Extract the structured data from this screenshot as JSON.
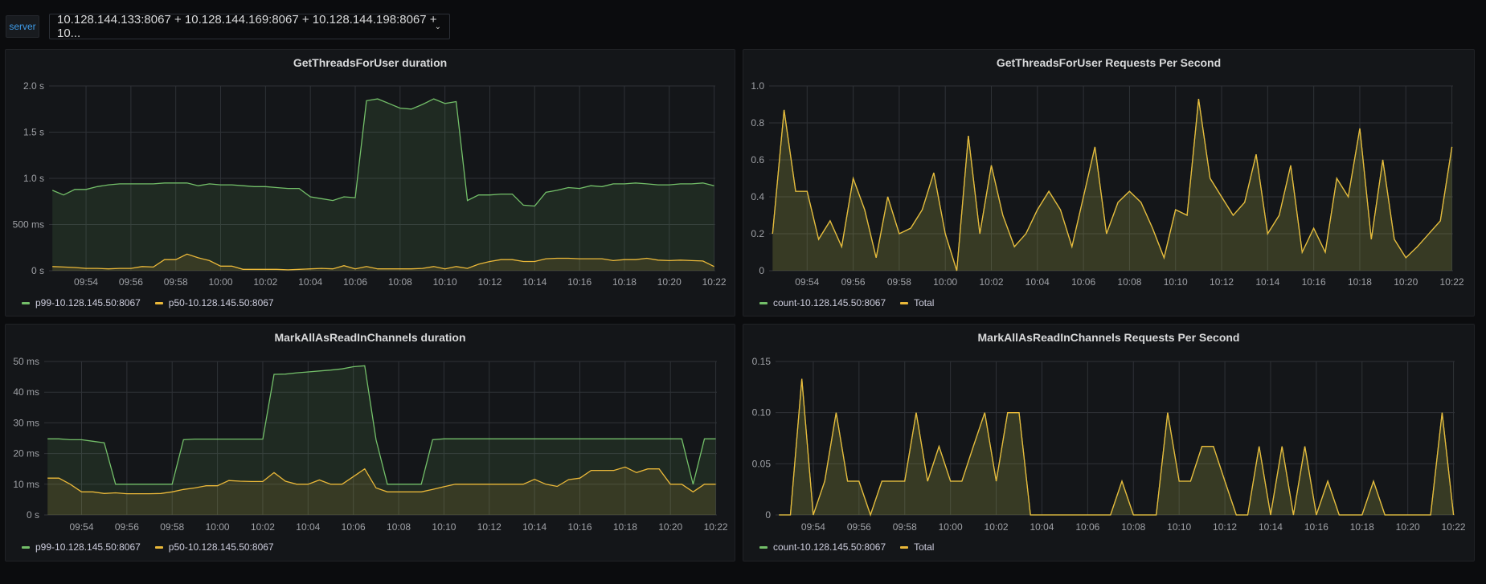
{
  "variable": {
    "label": "server",
    "value": "10.128.144.133:8067 + 10.128.144.169:8067 + 10.128.144.198:8067 + 10...",
    "chevron_icon": "chevron-down-icon"
  },
  "colors": {
    "green": "#73bf69",
    "yellow": "#eab839",
    "accent": "#3d9ae6"
  },
  "chart_data": [
    {
      "type": "area",
      "title": "GetThreadsForUser duration",
      "x_start": "09:52:30",
      "interval_seconds": 30,
      "x_ticks": [
        "09:54",
        "09:56",
        "09:58",
        "10:00",
        "10:02",
        "10:04",
        "10:06",
        "10:08",
        "10:10",
        "10:12",
        "10:14",
        "10:16",
        "10:18",
        "10:20",
        "10:22"
      ],
      "y_ticks": [
        {
          "v": 0,
          "label": "0 s"
        },
        {
          "v": 0.5,
          "label": "500 ms"
        },
        {
          "v": 1.0,
          "label": "1.0 s"
        },
        {
          "v": 1.5,
          "label": "1.5 s"
        },
        {
          "v": 2.0,
          "label": "2.0 s"
        }
      ],
      "ylim": [
        0,
        2.0
      ],
      "yunit": "s",
      "series": [
        {
          "name": "p99-10.128.145.50:8067",
          "color": "#73bf69",
          "values": [
            0.87,
            0.82,
            0.88,
            0.88,
            0.91,
            0.93,
            0.94,
            0.94,
            0.94,
            0.94,
            0.95,
            0.95,
            0.95,
            0.92,
            0.94,
            0.93,
            0.93,
            0.92,
            0.91,
            0.91,
            0.9,
            0.89,
            0.89,
            0.8,
            0.78,
            0.76,
            0.8,
            0.79,
            1.84,
            1.86,
            1.81,
            1.76,
            1.75,
            1.8,
            1.86,
            1.81,
            1.83,
            0.76,
            0.82,
            0.82,
            0.83,
            0.83,
            0.71,
            0.7,
            0.85,
            0.87,
            0.9,
            0.89,
            0.92,
            0.91,
            0.94,
            0.94,
            0.95,
            0.94,
            0.93,
            0.93,
            0.94,
            0.94,
            0.95,
            0.92
          ]
        },
        {
          "name": "p50-10.128.145.50:8067",
          "color": "#eab839",
          "values": [
            0.045,
            0.04,
            0.035,
            0.025,
            0.025,
            0.02,
            0.025,
            0.025,
            0.045,
            0.04,
            0.12,
            0.12,
            0.18,
            0.14,
            0.11,
            0.05,
            0.05,
            0.015,
            0.015,
            0.015,
            0.015,
            0.01,
            0.015,
            0.02,
            0.025,
            0.02,
            0.055,
            0.02,
            0.045,
            0.02,
            0.02,
            0.02,
            0.02,
            0.025,
            0.045,
            0.02,
            0.045,
            0.025,
            0.07,
            0.1,
            0.12,
            0.12,
            0.1,
            0.1,
            0.13,
            0.135,
            0.135,
            0.13,
            0.13,
            0.13,
            0.11,
            0.12,
            0.12,
            0.135,
            0.115,
            0.11,
            0.115,
            0.11,
            0.105,
            0.045
          ]
        }
      ]
    },
    {
      "type": "area",
      "title": "GetThreadsForUser Requests Per Second",
      "x_start": "09:52:30",
      "interval_seconds": 30,
      "x_ticks": [
        "09:54",
        "09:56",
        "09:58",
        "10:00",
        "10:02",
        "10:04",
        "10:06",
        "10:08",
        "10:10",
        "10:12",
        "10:14",
        "10:16",
        "10:18",
        "10:20",
        "10:22"
      ],
      "y_ticks": [
        {
          "v": 0,
          "label": "0"
        },
        {
          "v": 0.2,
          "label": "0.2"
        },
        {
          "v": 0.4,
          "label": "0.4"
        },
        {
          "v": 0.6,
          "label": "0.6"
        },
        {
          "v": 0.8,
          "label": "0.8"
        },
        {
          "v": 1.0,
          "label": "1.0"
        }
      ],
      "ylim": [
        0,
        1.0
      ],
      "yunit": "req/s",
      "series": [
        {
          "name": "count-10.128.145.50:8067",
          "color": "#73bf69",
          "values": [
            0.2,
            0.87,
            0.43,
            0.43,
            0.17,
            0.27,
            0.13,
            0.5,
            0.33,
            0.07,
            0.4,
            0.2,
            0.23,
            0.33,
            0.53,
            0.2,
            0,
            0.73,
            0.2,
            0.57,
            0.3,
            0.13,
            0.2,
            0.33,
            0.43,
            0.33,
            0.13,
            0.4,
            0.67,
            0.2,
            0.37,
            0.43,
            0.37,
            0.23,
            0.07,
            0.33,
            0.3,
            0.93,
            0.5,
            0.4,
            0.3,
            0.37,
            0.63,
            0.2,
            0.3,
            0.57,
            0.1,
            0.23,
            0.1,
            0.5,
            0.4,
            0.77,
            0.17,
            0.6,
            0.17,
            0.07,
            0.13,
            0.2,
            0.27,
            0.67
          ]
        },
        {
          "name": "Total",
          "color": "#eab839",
          "values": [
            0.2,
            0.87,
            0.43,
            0.43,
            0.17,
            0.27,
            0.13,
            0.5,
            0.33,
            0.07,
            0.4,
            0.2,
            0.23,
            0.33,
            0.53,
            0.2,
            0,
            0.73,
            0.2,
            0.57,
            0.3,
            0.13,
            0.2,
            0.33,
            0.43,
            0.33,
            0.13,
            0.4,
            0.67,
            0.2,
            0.37,
            0.43,
            0.37,
            0.23,
            0.07,
            0.33,
            0.3,
            0.93,
            0.5,
            0.4,
            0.3,
            0.37,
            0.63,
            0.2,
            0.3,
            0.57,
            0.1,
            0.23,
            0.1,
            0.5,
            0.4,
            0.77,
            0.17,
            0.6,
            0.17,
            0.07,
            0.13,
            0.2,
            0.27,
            0.67
          ]
        }
      ]
    },
    {
      "type": "area",
      "title": "MarkAllAsReadInChannels duration",
      "x_start": "09:52:30",
      "interval_seconds": 30,
      "x_ticks": [
        "09:54",
        "09:56",
        "09:58",
        "10:00",
        "10:02",
        "10:04",
        "10:06",
        "10:08",
        "10:10",
        "10:12",
        "10:14",
        "10:16",
        "10:18",
        "10:20",
        "10:22"
      ],
      "y_ticks": [
        {
          "v": 0,
          "label": "0 s"
        },
        {
          "v": 10,
          "label": "10 ms"
        },
        {
          "v": 20,
          "label": "20 ms"
        },
        {
          "v": 30,
          "label": "30 ms"
        },
        {
          "v": 40,
          "label": "40 ms"
        },
        {
          "v": 50,
          "label": "50 ms"
        }
      ],
      "ylim": [
        0,
        50
      ],
      "yunit": "ms",
      "series": [
        {
          "name": "p99-10.128.145.50:8067",
          "color": "#73bf69",
          "values": [
            24.8,
            24.8,
            24.5,
            24.5,
            24,
            23.5,
            10,
            10,
            10,
            10,
            10,
            10,
            24.5,
            24.7,
            24.7,
            24.7,
            24.7,
            24.7,
            24.7,
            24.7,
            45.8,
            45.9,
            46.3,
            46.6,
            46.9,
            47.2,
            47.6,
            48.3,
            48.6,
            24.5,
            10,
            10,
            10,
            10,
            24.5,
            24.8,
            24.8,
            24.8,
            24.8,
            24.8,
            24.8,
            24.8,
            24.8,
            24.8,
            24.8,
            24.8,
            24.8,
            24.8,
            24.8,
            24.8,
            24.8,
            24.8,
            24.8,
            24.8,
            24.8,
            24.8,
            24.8,
            10,
            24.8,
            24.8
          ]
        },
        {
          "name": "p50-10.128.145.50:8067",
          "color": "#eab839",
          "values": [
            12,
            12,
            10,
            7.5,
            7.5,
            7,
            7.2,
            6.9,
            6.9,
            6.9,
            7,
            7.5,
            8.3,
            8.8,
            9.5,
            9.5,
            11.2,
            11,
            10.9,
            10.9,
            13.8,
            11,
            10,
            10,
            11.4,
            10,
            10,
            12.5,
            15,
            8.8,
            7.5,
            7.5,
            7.5,
            7.5,
            8.3,
            9.2,
            10,
            10,
            10,
            10,
            10,
            10,
            10,
            11.6,
            10,
            9.3,
            11.5,
            12,
            14.5,
            14.5,
            14.5,
            15.6,
            13.8,
            15,
            15,
            10,
            10,
            7.5,
            10,
            10
          ]
        }
      ]
    },
    {
      "type": "area",
      "title": "MarkAllAsReadInChannels Requests Per Second",
      "x_start": "09:52:30",
      "interval_seconds": 30,
      "x_ticks": [
        "09:54",
        "09:56",
        "09:58",
        "10:00",
        "10:02",
        "10:04",
        "10:06",
        "10:08",
        "10:10",
        "10:12",
        "10:14",
        "10:16",
        "10:18",
        "10:20",
        "10:22"
      ],
      "y_ticks": [
        {
          "v": 0,
          "label": "0"
        },
        {
          "v": 0.05,
          "label": "0.05"
        },
        {
          "v": 0.1,
          "label": "0.10"
        },
        {
          "v": 0.15,
          "label": "0.15"
        }
      ],
      "ylim": [
        0,
        0.15
      ],
      "yunit": "req/s",
      "series": [
        {
          "name": "count-10.128.145.50:8067",
          "color": "#73bf69",
          "values": [
            0,
            0,
            0.133,
            0,
            0.033,
            0.1,
            0.033,
            0.033,
            0,
            0.033,
            0.033,
            0.033,
            0.1,
            0.033,
            0.067,
            0.033,
            0.033,
            0.067,
            0.1,
            0.033,
            0.1,
            0.1,
            0,
            0,
            0,
            0,
            0,
            0,
            0,
            0,
            0.033,
            0,
            0,
            0,
            0.1,
            0.033,
            0.033,
            0.067,
            0.067,
            0.033,
            0,
            0,
            0.067,
            0,
            0.067,
            0,
            0.067,
            0,
            0.033,
            0,
            0,
            0,
            0.033,
            0,
            0,
            0,
            0,
            0,
            0.1,
            0
          ]
        },
        {
          "name": "Total",
          "color": "#eab839",
          "values": [
            0,
            0,
            0.133,
            0,
            0.033,
            0.1,
            0.033,
            0.033,
            0,
            0.033,
            0.033,
            0.033,
            0.1,
            0.033,
            0.067,
            0.033,
            0.033,
            0.067,
            0.1,
            0.033,
            0.1,
            0.1,
            0,
            0,
            0,
            0,
            0,
            0,
            0,
            0,
            0.033,
            0,
            0,
            0,
            0.1,
            0.033,
            0.033,
            0.067,
            0.067,
            0.033,
            0,
            0,
            0.067,
            0,
            0.067,
            0,
            0.067,
            0,
            0.033,
            0,
            0,
            0,
            0.033,
            0,
            0,
            0,
            0,
            0,
            0.1,
            0
          ]
        }
      ]
    }
  ]
}
